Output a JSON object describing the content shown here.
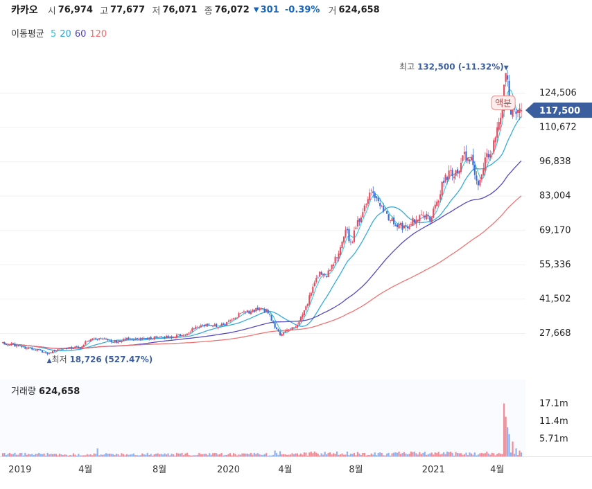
{
  "header": {
    "stock_name": "카카오",
    "open_label": "시",
    "open": "76,974",
    "high_label": "고",
    "high": "77,677",
    "low_label": "저",
    "low": "76,071",
    "close_label": "종",
    "close": "76,072",
    "change_arrow": "▼",
    "change": "301",
    "change_pct": "-0.39%",
    "volume_label": "거",
    "volume": "624,658"
  },
  "ma_legend": {
    "label": "이동평균",
    "periods": [
      {
        "period": "5",
        "color": "#26c6da"
      },
      {
        "period": "20",
        "color": "#29a6d9"
      },
      {
        "period": "60",
        "color": "#4b3fbf"
      },
      {
        "period": "120",
        "color": "#ef6c6c"
      }
    ]
  },
  "chart_data": {
    "type": "candlestick",
    "y_ticks": [
      "124,506",
      "110,672",
      "96,838",
      "83,004",
      "69,170",
      "55,336",
      "41,502",
      "27,668"
    ],
    "y_tick_values": [
      124506,
      110672,
      96838,
      83004,
      69170,
      55336,
      41502,
      27668
    ],
    "x_ticks": [
      "2019",
      "4월",
      "8월",
      "2020",
      "4월",
      "8월",
      "2021",
      "4월"
    ],
    "x_tick_index": [
      10,
      48,
      91,
      131,
      164,
      205,
      250,
      287
    ],
    "n_days": 302,
    "current_price_label": "117,500",
    "current_price": 117500,
    "high_marker": {
      "label": "최고",
      "value_text": "132,500",
      "pct_text": "(-11.32%)",
      "arrow": "▼",
      "value": 132500
    },
    "low_marker": {
      "label": "최저",
      "value_text": "18,726",
      "pct_text": "(527.47%)",
      "arrow": "▲",
      "value": 18726
    },
    "event_badge": "액분",
    "price_anchors": [
      [
        0,
        23700
      ],
      [
        5,
        23000
      ],
      [
        12,
        21800
      ],
      [
        20,
        20900
      ],
      [
        26,
        19500
      ],
      [
        34,
        21500
      ],
      [
        45,
        21900
      ],
      [
        48,
        24000
      ],
      [
        52,
        25700
      ],
      [
        58,
        25000
      ],
      [
        66,
        24100
      ],
      [
        74,
        25800
      ],
      [
        82,
        25300
      ],
      [
        90,
        26200
      ],
      [
        98,
        26100
      ],
      [
        106,
        27400
      ],
      [
        112,
        29800
      ],
      [
        118,
        31100
      ],
      [
        126,
        30500
      ],
      [
        132,
        32500
      ],
      [
        137,
        35100
      ],
      [
        142,
        36100
      ],
      [
        148,
        37300
      ],
      [
        154,
        36300
      ],
      [
        158,
        30200
      ],
      [
        161,
        26900
      ],
      [
        166,
        29400
      ],
      [
        171,
        31200
      ],
      [
        176,
        38200
      ],
      [
        180,
        46400
      ],
      [
        184,
        52400
      ],
      [
        188,
        51300
      ],
      [
        192,
        55600
      ],
      [
        196,
        62000
      ],
      [
        199,
        70100
      ],
      [
        202,
        63100
      ],
      [
        206,
        72100
      ],
      [
        210,
        78000
      ],
      [
        214,
        84000
      ],
      [
        218,
        81000
      ],
      [
        222,
        76100
      ],
      [
        226,
        72700
      ],
      [
        230,
        71000
      ],
      [
        234,
        69400
      ],
      [
        237,
        72100
      ],
      [
        240,
        73800
      ],
      [
        244,
        76300
      ],
      [
        248,
        74200
      ],
      [
        252,
        80000
      ],
      [
        256,
        90100
      ],
      [
        260,
        92000
      ],
      [
        264,
        93000
      ],
      [
        268,
        99000
      ],
      [
        272,
        96800
      ],
      [
        276,
        89000
      ],
      [
        280,
        97000
      ],
      [
        284,
        102000
      ],
      [
        288,
        111000
      ],
      [
        290,
        118000
      ],
      [
        292,
        132500
      ],
      [
        295,
        118000
      ],
      [
        297,
        116000
      ],
      [
        299,
        117500
      ]
    ],
    "volume_axis_ticks": [
      "17.1m",
      "11.4m",
      "5.71m"
    ],
    "volume_axis_values": [
      17100000,
      11400000,
      5710000
    ],
    "volume_spikes": [
      [
        55,
        2600000
      ],
      [
        158,
        1900000
      ],
      [
        161,
        1700000
      ],
      [
        291,
        17100000
      ],
      [
        292,
        12800000
      ],
      [
        293,
        9400000
      ],
      [
        294,
        7200000
      ],
      [
        296,
        4800000
      ],
      [
        298,
        2600000
      ],
      [
        300,
        1900000
      ]
    ]
  },
  "volume_header": {
    "label": "거래량",
    "value": "624,658"
  }
}
